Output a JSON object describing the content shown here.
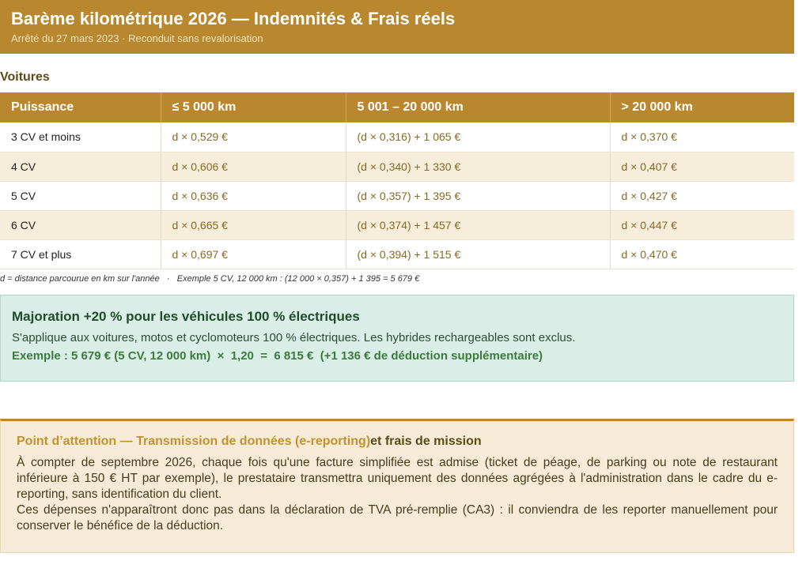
{
  "header": {
    "title": "Barème kilométrique 2026 — Indemnités & Frais réels",
    "subtitle": "Arrêté du 27 mars 2023 · Reconduit sans revalorisation"
  },
  "section_title": "Voitures",
  "table": {
    "headers": [
      "Puissance",
      "≤ 5 000 km",
      "5 001 – 20 000 km",
      "> 20 000 km"
    ],
    "rows": [
      [
        "3 CV et moins",
        "d × 0,529 €",
        "(d × 0,316) + 1 065 €",
        "d × 0,370 €"
      ],
      [
        "4 CV",
        "d × 0,606 €",
        "(d × 0,340) + 1 330 €",
        "d × 0,407 €"
      ],
      [
        "5 CV",
        "d × 0,636 €",
        "(d × 0,357) + 1 395 €",
        "d × 0,427 €"
      ],
      [
        "6 CV",
        "d × 0,665 €",
        "(d × 0,374) + 1 457 €",
        "d × 0,447 €"
      ],
      [
        "7 CV et plus",
        "d × 0,697 €",
        "(d × 0,394) + 1 515 €",
        "d × 0,470 €"
      ]
    ]
  },
  "note": "d = distance parcourue en km sur l'année   ·   Exemple 5 CV, 12 000 km : (12 000 × 0,357) + 1 395 = 5 679 €",
  "electric": {
    "title": "Majoration +20 % pour les véhicules 100 % électriques",
    "text": "S'applique aux voitures, motos et cyclomoteurs 100 % électriques. Les hybrides rechargeables sont exclus.",
    "example": "Exemple : 5 679 € (5 CV, 12 000 km)  ×  1,20  =  6 815 €  (+1 136 € de déduction supplémentaire)"
  },
  "attention": {
    "title_a": "Point d’attention — Transmission de données (e-reporting)",
    "title_b": "et frais de mission",
    "p1": "À compter de septembre 2026, chaque fois qu'une facture simplifiée est admise (ticket de péage, de parking ou note de restaurant inférieure à 150 € HT par exemple), le prestataire transmettra uniquement des données agrégées à l'administration dans le cadre du e-reporting, sans identification du client.",
    "p2": "Ces dépenses n'apparaîtront donc pas dans la déclaration de TVA pré-remplie (CA3) : il conviendra de les reporter manuellement pour conserver le bénéfice de la déduction."
  },
  "colors": {
    "gold": "#b9872e",
    "green_bg": "#d9eee6",
    "cream": "#f5ebd7"
  }
}
